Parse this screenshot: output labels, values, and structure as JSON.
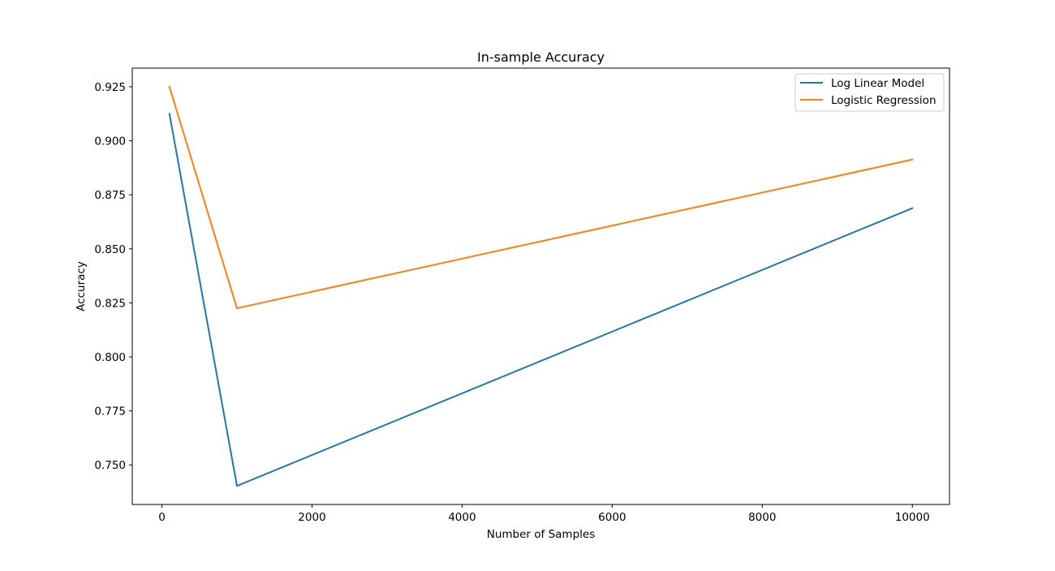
{
  "chart_data": {
    "type": "line",
    "title": "In-sample Accuracy",
    "xlabel": "Number of Samples",
    "ylabel": "Accuracy",
    "x": [
      100,
      1000,
      10000
    ],
    "series": [
      {
        "name": "Log Linear Model",
        "color": "#1f77b4",
        "values": [
          0.9125,
          0.7403,
          0.8688
        ]
      },
      {
        "name": "Logistic Regression",
        "color": "#ff7f0e",
        "values": [
          0.925,
          0.8225,
          0.8913
        ]
      }
    ],
    "xlim": [
      -395,
      10495
    ],
    "ylim": [
      0.7317,
      0.9336
    ],
    "xticks": [
      0,
      2000,
      4000,
      6000,
      8000,
      10000
    ],
    "yticks": [
      0.75,
      0.775,
      0.8,
      0.825,
      0.85,
      0.875,
      0.9,
      0.925
    ],
    "grid": false,
    "legend_position": "top-right"
  }
}
